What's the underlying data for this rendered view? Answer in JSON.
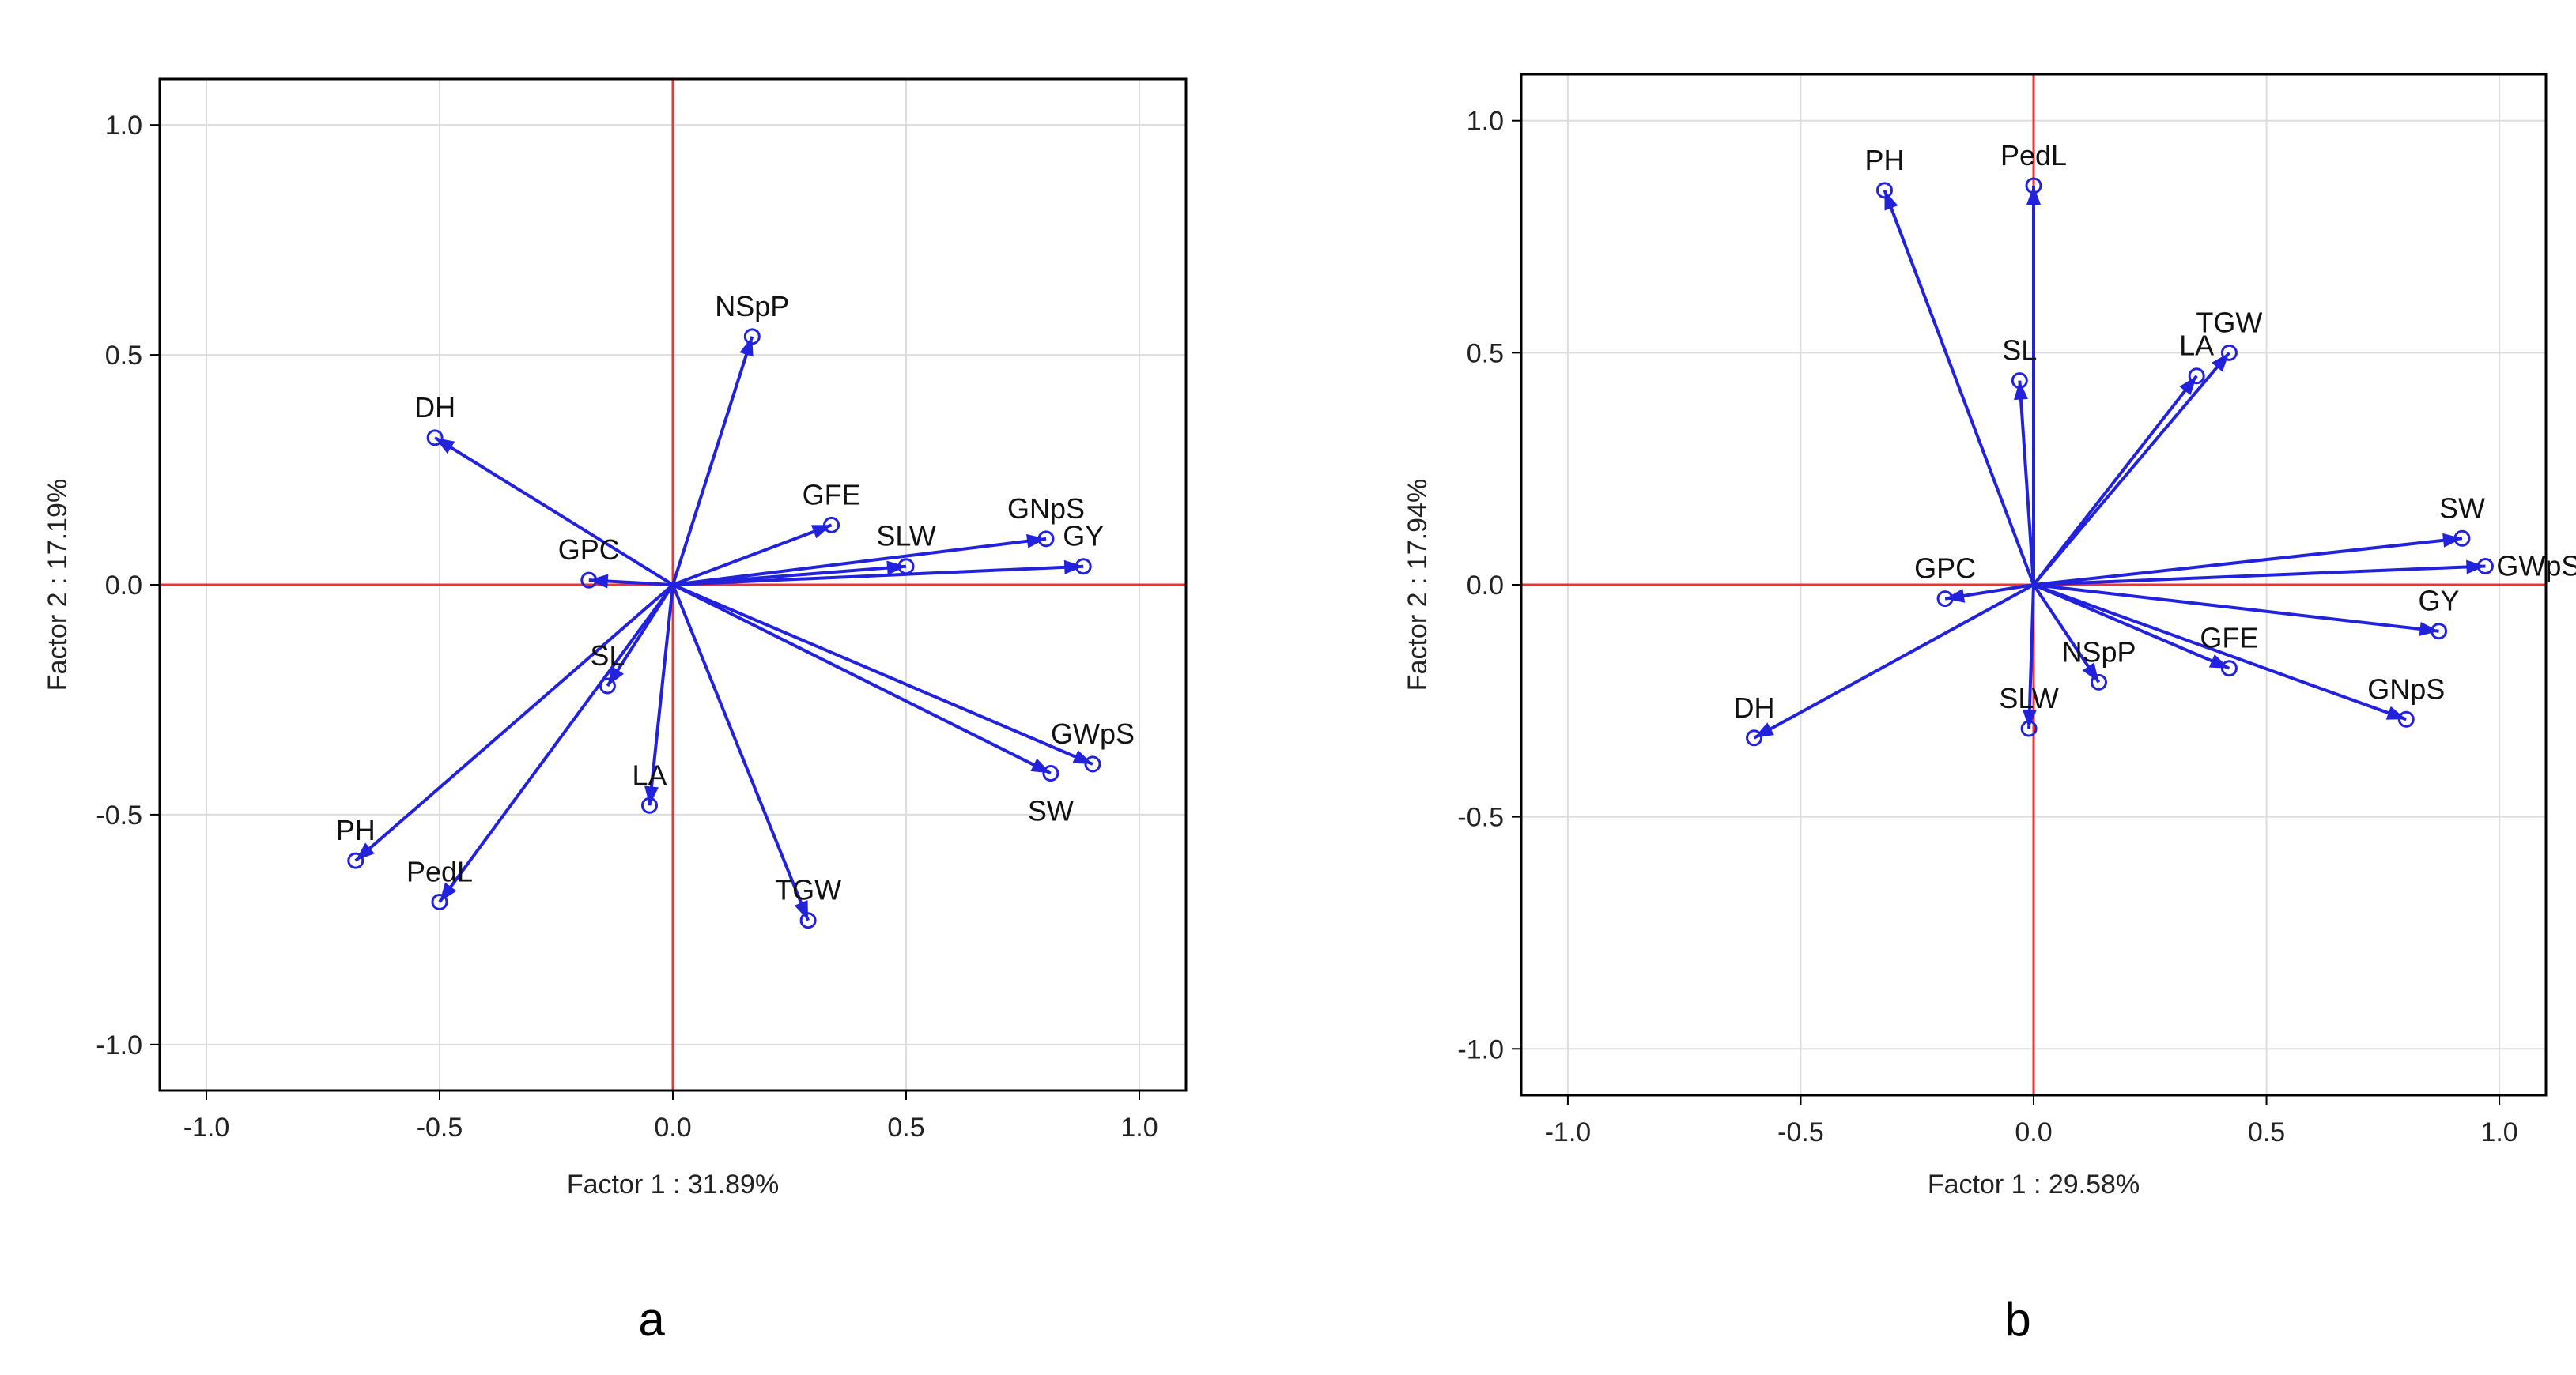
{
  "colors": {
    "vector": "#2222dd",
    "zero_line": "#ee3333",
    "grid": "#dddddd",
    "frame": "#000000"
  },
  "chart_data": [
    {
      "type": "scatter",
      "subtype": "pca-loading-plot",
      "caption": "a",
      "xlabel": "Factor 1 : 31.89%",
      "ylabel": "Factor 2 : 17.19%",
      "xlim": [
        -1.1,
        1.1
      ],
      "ylim": [
        -1.1,
        1.1
      ],
      "xticks": [
        -1.0,
        -0.5,
        0.0,
        0.5,
        1.0
      ],
      "yticks": [
        -1.0,
        -0.5,
        0.0,
        0.5,
        1.0
      ],
      "tick_labels": [
        "-1.0",
        "-0.5",
        "0.0",
        "0.5",
        "1.0"
      ],
      "grid": true,
      "points": [
        {
          "label": "NSpP",
          "x": 0.17,
          "y": 0.54,
          "label_pos": "above"
        },
        {
          "label": "DH",
          "x": -0.51,
          "y": 0.32,
          "label_pos": "above"
        },
        {
          "label": "GFE",
          "x": 0.34,
          "y": 0.13,
          "label_pos": "above"
        },
        {
          "label": "GNpS",
          "x": 0.8,
          "y": 0.1,
          "label_pos": "above"
        },
        {
          "label": "GY",
          "x": 0.88,
          "y": 0.04,
          "label_pos": "above"
        },
        {
          "label": "SLW",
          "x": 0.5,
          "y": 0.04,
          "label_pos": "above"
        },
        {
          "label": "GPC",
          "x": -0.18,
          "y": 0.01,
          "label_pos": "above"
        },
        {
          "label": "SL",
          "x": -0.14,
          "y": -0.22,
          "label_pos": "above"
        },
        {
          "label": "LA",
          "x": -0.05,
          "y": -0.48,
          "label_pos": "above"
        },
        {
          "label": "GWpS",
          "x": 0.9,
          "y": -0.39,
          "label_pos": "above"
        },
        {
          "label": "SW",
          "x": 0.81,
          "y": -0.41,
          "label_pos": "below"
        },
        {
          "label": "PH",
          "x": -0.68,
          "y": -0.6,
          "label_pos": "above"
        },
        {
          "label": "PedL",
          "x": -0.5,
          "y": -0.69,
          "label_pos": "above"
        },
        {
          "label": "TGW",
          "x": 0.29,
          "y": -0.73,
          "label_pos": "above"
        }
      ]
    },
    {
      "type": "scatter",
      "subtype": "pca-loading-plot",
      "caption": "b",
      "xlabel": "Factor 1 : 29.58%",
      "ylabel": "Factor 2 : 17.94%",
      "xlim": [
        -1.1,
        1.1
      ],
      "ylim": [
        -1.1,
        1.1
      ],
      "xticks": [
        -1.0,
        -0.5,
        0.0,
        0.5,
        1.0
      ],
      "yticks": [
        -1.0,
        -0.5,
        0.0,
        0.5,
        1.0
      ],
      "tick_labels": [
        "-1.0",
        "-0.5",
        "0.0",
        "0.5",
        "1.0"
      ],
      "grid": true,
      "points": [
        {
          "label": "PH",
          "x": -0.32,
          "y": 0.85,
          "label_pos": "above"
        },
        {
          "label": "PedL",
          "x": 0.0,
          "y": 0.86,
          "label_pos": "above"
        },
        {
          "label": "SL",
          "x": -0.03,
          "y": 0.44,
          "label_pos": "above"
        },
        {
          "label": "TGW",
          "x": 0.42,
          "y": 0.5,
          "label_pos": "above"
        },
        {
          "label": "LA",
          "x": 0.35,
          "y": 0.45,
          "label_pos": "above"
        },
        {
          "label": "SW",
          "x": 0.92,
          "y": 0.1,
          "label_pos": "above"
        },
        {
          "label": "GWpS",
          "x": 0.97,
          "y": 0.04,
          "label_pos": "right"
        },
        {
          "label": "GY",
          "x": 0.87,
          "y": -0.1,
          "label_pos": "above"
        },
        {
          "label": "GPC",
          "x": -0.19,
          "y": -0.03,
          "label_pos": "above"
        },
        {
          "label": "GFE",
          "x": 0.42,
          "y": -0.18,
          "label_pos": "above"
        },
        {
          "label": "NSpP",
          "x": 0.14,
          "y": -0.21,
          "label_pos": "above"
        },
        {
          "label": "GNpS",
          "x": 0.8,
          "y": -0.29,
          "label_pos": "above"
        },
        {
          "label": "SLW",
          "x": -0.01,
          "y": -0.31,
          "label_pos": "above"
        },
        {
          "label": "DH",
          "x": -0.6,
          "y": -0.33,
          "label_pos": "above"
        }
      ]
    }
  ]
}
